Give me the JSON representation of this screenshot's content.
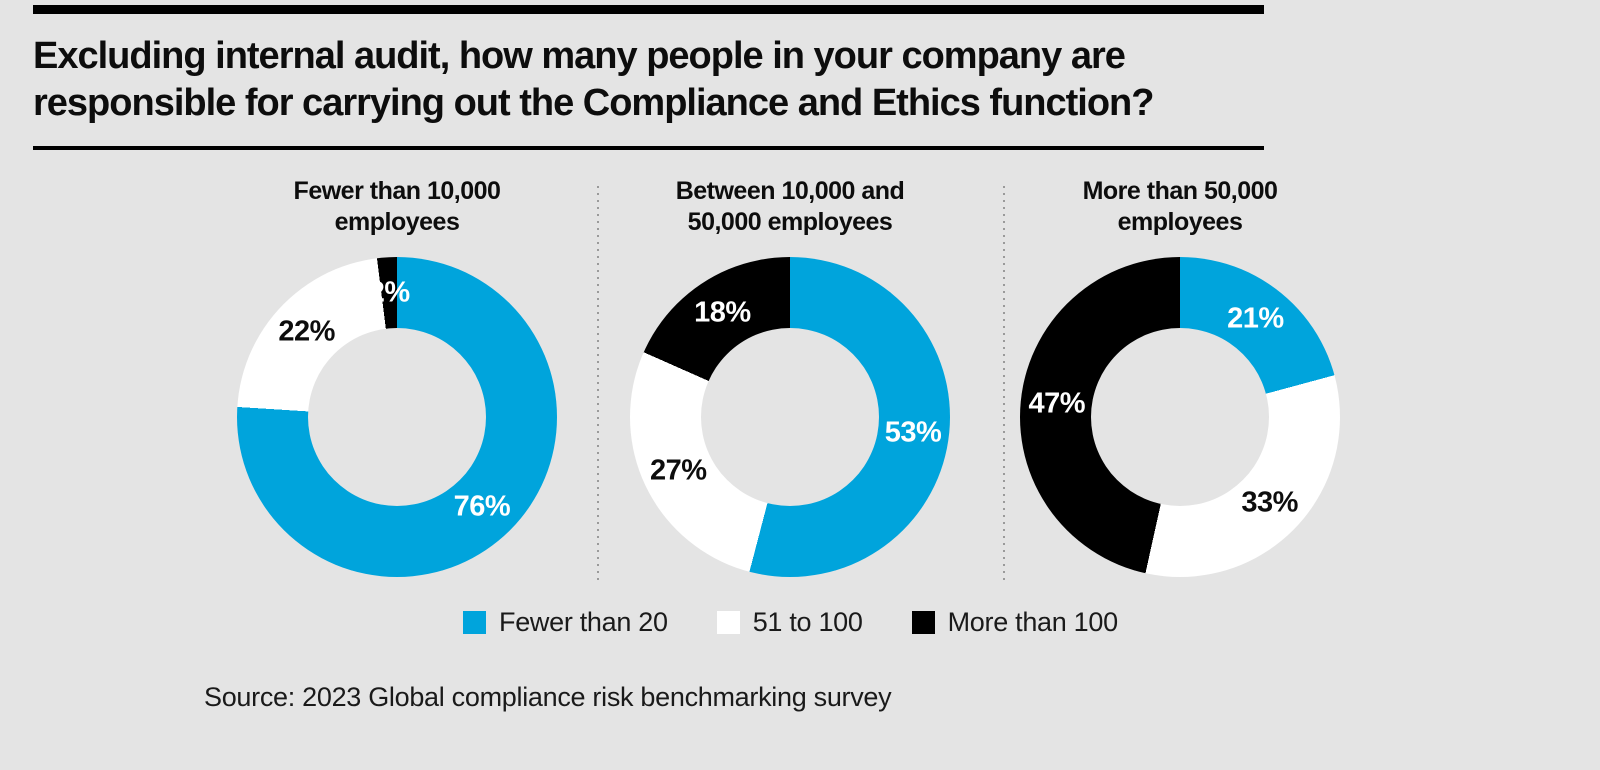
{
  "page": {
    "background_color": "#e4e4e4",
    "accent_blue": "#00a4dc",
    "black": "#000000",
    "white": "#ffffff"
  },
  "title": {
    "line1": "Excluding internal audit, how many people in your company are",
    "line2": "responsible for carrying out the Compliance and Ethics function?"
  },
  "legend": {
    "items": [
      {
        "label": "Fewer than 20",
        "color": "#00a4dc"
      },
      {
        "label": "51 to 100",
        "color": "#ffffff"
      },
      {
        "label": "More than 100",
        "color": "#000000"
      }
    ]
  },
  "source": {
    "text": "Source: 2023 Global compliance risk benchmarking survey"
  },
  "chart_data": [
    {
      "type": "pie",
      "subtype": "donut",
      "title": "Fewer than 10,000 employees",
      "title_line1": "Fewer than 10,000",
      "title_line2": "employees",
      "legend_position": "bottom",
      "segments": [
        {
          "label": "Fewer than 20",
          "value": 76,
          "display": "76%",
          "color": "#00a4dc"
        },
        {
          "label": "51 to 100",
          "value": 22,
          "display": "22%",
          "color": "#ffffff"
        },
        {
          "label": "More than 100",
          "value": 2,
          "display": "2%",
          "color": "#000000"
        }
      ]
    },
    {
      "type": "pie",
      "subtype": "donut",
      "title": "Between 10,000 and 50,000 employees",
      "title_line1": "Between 10,000 and",
      "title_line2": "50,000 employees",
      "legend_position": "bottom",
      "segments": [
        {
          "label": "Fewer than 20",
          "value": 53,
          "display": "53%",
          "color": "#00a4dc"
        },
        {
          "label": "51 to 100",
          "value": 27,
          "display": "27%",
          "color": "#ffffff"
        },
        {
          "label": "More than 100",
          "value": 18,
          "display": "18%",
          "color": "#000000"
        }
      ]
    },
    {
      "type": "pie",
      "subtype": "donut",
      "title": "More than 50,000 employees",
      "title_line1": "More than 50,000",
      "title_line2": "employees",
      "legend_position": "bottom",
      "segments": [
        {
          "label": "Fewer than 20",
          "value": 21,
          "display": "21%",
          "color": "#00a4dc"
        },
        {
          "label": "51 to 100",
          "value": 33,
          "display": "33%",
          "color": "#ffffff"
        },
        {
          "label": "More than 100",
          "value": 47,
          "display": "47%",
          "color": "#000000"
        }
      ]
    }
  ]
}
